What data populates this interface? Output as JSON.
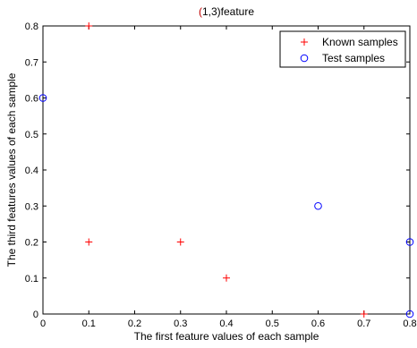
{
  "chart_data": {
    "type": "scatter",
    "title": "(1,3)feature",
    "title_parts": {
      "open": "(",
      "rest": "1,3)feature",
      "open_color": "#c00000"
    },
    "xlabel": "The first feature values of each sample",
    "ylabel": "The third features values of each sample",
    "xlim": [
      0,
      0.8
    ],
    "ylim": [
      0,
      0.8
    ],
    "xticks": [
      0,
      0.1,
      0.2,
      0.3,
      0.4,
      0.5,
      0.6,
      0.7,
      0.8
    ],
    "xtick_labels": [
      "0",
      "0.1",
      "0.2",
      "0.3",
      "0.4",
      "0.5",
      "0.6",
      "0.7",
      "0.8"
    ],
    "yticks": [
      0,
      0.1,
      0.2,
      0.3,
      0.4,
      0.5,
      0.6,
      0.7,
      0.8
    ],
    "ytick_labels": [
      "0",
      "0.1",
      "0.2",
      "0.3",
      "0.4",
      "0.5",
      "0.6",
      "0.7",
      "0.8"
    ],
    "grid": false,
    "legend_position": "top-right",
    "series": [
      {
        "name": "Known samples",
        "marker": "plus",
        "color": "#ff0000",
        "points": [
          {
            "x": 0.1,
            "y": 0.8
          },
          {
            "x": 0.1,
            "y": 0.2
          },
          {
            "x": 0.3,
            "y": 0.2
          },
          {
            "x": 0.4,
            "y": 0.1
          },
          {
            "x": 0.7,
            "y": 0.0
          }
        ]
      },
      {
        "name": "Test samples",
        "marker": "circle",
        "color": "#0000ff",
        "points": [
          {
            "x": 0.0,
            "y": 0.6
          },
          {
            "x": 0.6,
            "y": 0.3
          },
          {
            "x": 0.8,
            "y": 0.2
          },
          {
            "x": 0.8,
            "y": 0.0
          }
        ]
      }
    ]
  }
}
